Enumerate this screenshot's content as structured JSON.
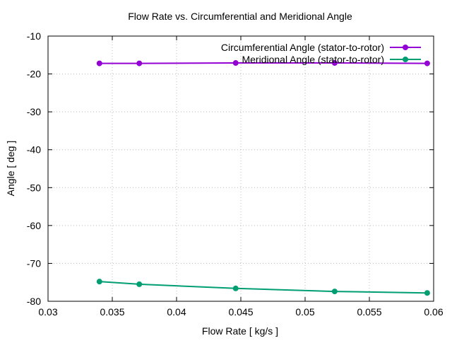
{
  "chart_data": {
    "type": "line",
    "title": "Flow Rate vs. Circumferential and Meridional Angle",
    "xlabel": "Flow Rate [ kg/s ]",
    "ylabel": "Angle [ deg ]",
    "xlim": [
      0.03,
      0.06
    ],
    "ylim": [
      -80,
      -10
    ],
    "xticks": [
      "0.03",
      "0.035",
      "0.04",
      "0.045",
      "0.05",
      "0.055",
      "0.06"
    ],
    "xtick_values": [
      0.03,
      0.035,
      0.04,
      0.045,
      0.05,
      0.055,
      0.06
    ],
    "yticks": [
      "-10",
      "-20",
      "-30",
      "-40",
      "-50",
      "-60",
      "-70",
      "-80"
    ],
    "ytick_values": [
      -10,
      -20,
      -30,
      -40,
      -50,
      -60,
      -70,
      -80
    ],
    "grid": true,
    "legend_position": "top-right",
    "x": [
      0.034,
      0.0371,
      0.0446,
      0.0523,
      0.0595
    ],
    "series": [
      {
        "name": "Circumferential Angle (stator-to-rotor)",
        "color": "#9400d3",
        "values": [
          -17.2,
          -17.2,
          -17.1,
          -17.1,
          -17.2
        ]
      },
      {
        "name": "Meridional Angle (stator-to-rotor)",
        "color": "#009e73",
        "values": [
          -74.8,
          -75.5,
          -76.6,
          -77.4,
          -77.8
        ]
      }
    ]
  }
}
